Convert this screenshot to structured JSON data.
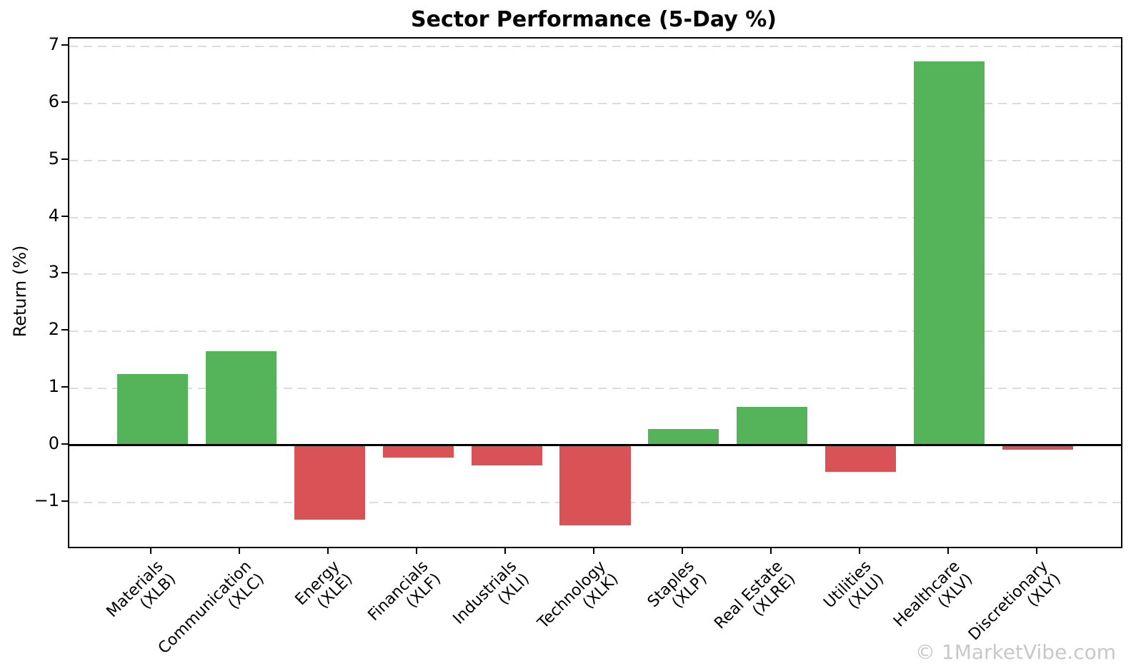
{
  "title": "Sector Performance (5-Day %)",
  "watermark": "© 1MarketVibe.com",
  "colors": {
    "positive_bar": "#55b45a",
    "negative_bar": "#d95356",
    "gridline": "#dcdcdc",
    "axis": "#000000",
    "watermark": "#c8c8c8",
    "background": "#ffffff"
  },
  "chart_data": {
    "type": "bar",
    "title": "Sector Performance (5-Day %)",
    "xlabel": "",
    "ylabel": "Return (%)",
    "categories": [
      "Materials",
      "Communication",
      "Energy",
      "Financials",
      "Industrials",
      "Technology",
      "Staples",
      "Real Estate",
      "Utilities",
      "Healthcare",
      "Discretionary"
    ],
    "tickers": [
      "XLB",
      "XLC",
      "XLE",
      "XLF",
      "XLI",
      "XLK",
      "XLP",
      "XLRE",
      "XLU",
      "XLV",
      "XLY"
    ],
    "values": [
      1.25,
      1.65,
      -1.31,
      -0.22,
      -0.35,
      -1.4,
      0.29,
      0.68,
      -0.46,
      6.74,
      -0.08
    ],
    "bar_color_rule": "green if value >= 0 else red",
    "ylim": [
      -1.78,
      7.14
    ],
    "yticks": [
      7,
      6,
      5,
      4,
      3,
      2,
      1,
      0,
      -1
    ],
    "ytick_labels": [
      "7",
      "6",
      "5",
      "4",
      "3",
      "2",
      "1",
      "0",
      "−1"
    ],
    "grid": {
      "axis": "y",
      "style": "dashed",
      "on": true
    },
    "zero_line": true,
    "legend": false,
    "bar_width_fraction": 0.8
  }
}
